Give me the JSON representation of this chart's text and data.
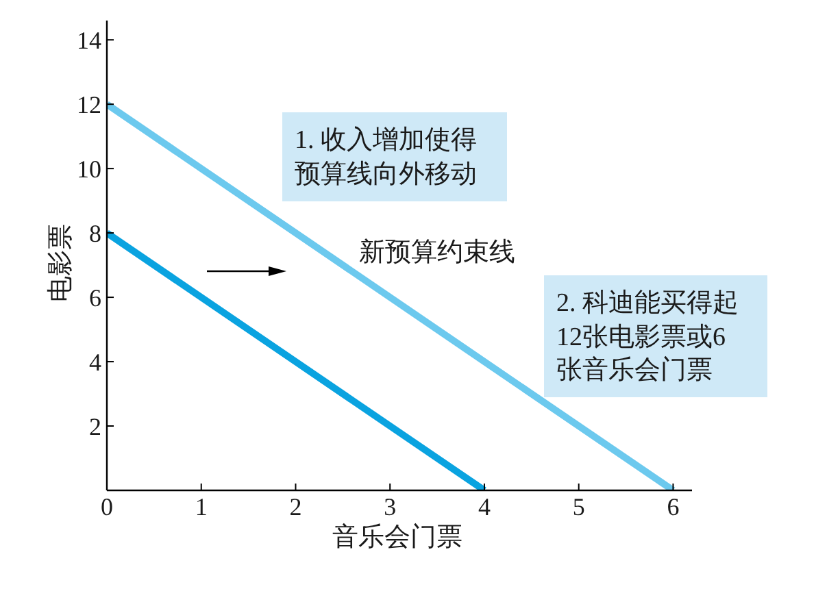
{
  "chart_data": {
    "type": "line",
    "xlabel": "音乐会门票",
    "ylabel": "电影票",
    "xlim": [
      0,
      6.2
    ],
    "xticks": [
      0,
      1,
      2,
      3,
      4,
      5,
      6
    ],
    "ylim": [
      0,
      14.6
    ],
    "yticks": [
      {
        "value": 0,
        "label": null
      },
      2,
      4,
      6,
      8,
      10,
      12,
      14
    ],
    "series": [
      {
        "color": "#0aa3e0",
        "x": [
          0,
          4
        ],
        "values": [
          8,
          0
        ]
      },
      {
        "name": "新预算约束线",
        "color": "#6cc9ee",
        "x": [
          0,
          6
        ],
        "values": [
          12,
          0
        ]
      }
    ],
    "annotations": [
      "1. 收入增加使得预算线向外移动",
      "2. 科迪能买得起12张电影票或6张音乐会门票"
    ],
    "marker": "none",
    "line_style": "solid"
  }
}
